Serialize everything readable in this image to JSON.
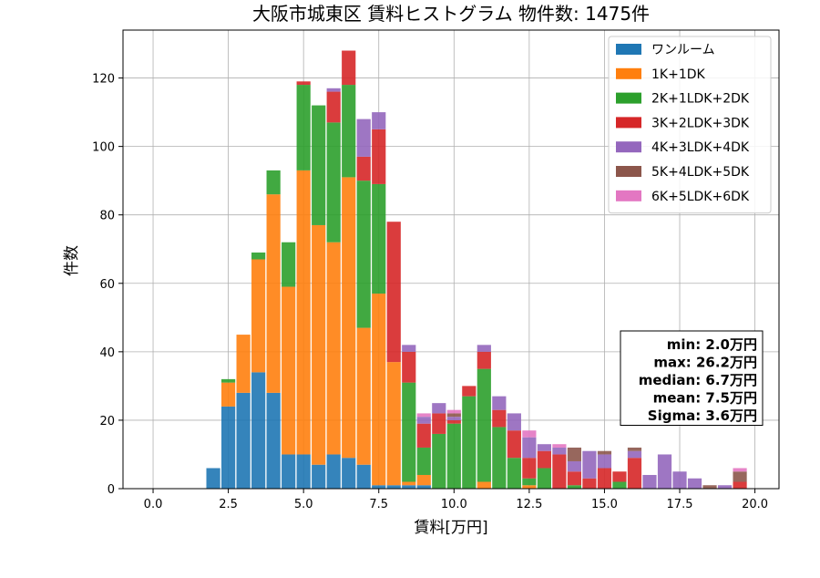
{
  "chart_data": {
    "type": "bar",
    "stacked": true,
    "title": "大阪市城東区 賃料ヒストグラム 物件数: 1475件",
    "xlabel": "賃料[万円]",
    "ylabel": "件数",
    "xlim": [
      -1.0,
      20.8
    ],
    "ylim": [
      0,
      134
    ],
    "grid": true,
    "legend_placement": "top-right",
    "bin_width": 0.5,
    "x_ticks": [
      0.0,
      2.5,
      5.0,
      7.5,
      10.0,
      12.5,
      15.0,
      17.5,
      20.0
    ],
    "x_tick_labels": [
      "0.0",
      "2.5",
      "5.0",
      "7.5",
      "10.0",
      "12.5",
      "15.0",
      "17.5",
      "20.0"
    ],
    "y_ticks": [
      0,
      20,
      40,
      60,
      80,
      100,
      120
    ],
    "y_tick_labels": [
      "0",
      "20",
      "40",
      "60",
      "80",
      "100",
      "120"
    ],
    "x": [
      2.0,
      2.5,
      3.0,
      3.5,
      4.0,
      4.5,
      5.0,
      5.5,
      6.0,
      6.5,
      7.0,
      7.5,
      8.0,
      8.5,
      9.0,
      9.5,
      10.0,
      10.5,
      11.0,
      11.5,
      12.0,
      12.5,
      13.0,
      13.5,
      14.0,
      14.5,
      15.0,
      15.5,
      16.0,
      16.5,
      17.0,
      17.5,
      18.0,
      18.5,
      19.0,
      19.5
    ],
    "series": [
      {
        "name": "ワンルーム",
        "color": "#1f77b4",
        "values": [
          6,
          24,
          28,
          34,
          28,
          10,
          10,
          7,
          10,
          9,
          7,
          1,
          1,
          1,
          1,
          0,
          0,
          0,
          0,
          0,
          0,
          0,
          0,
          0,
          0,
          0,
          0,
          0,
          0,
          0,
          0,
          0,
          0,
          0,
          0,
          0
        ]
      },
      {
        "name": "1K+1DK",
        "color": "#ff7f0e",
        "values": [
          0,
          7,
          17,
          33,
          58,
          49,
          83,
          70,
          62,
          82,
          40,
          56,
          36,
          1,
          3,
          0,
          0,
          0,
          2,
          0,
          0,
          1,
          0,
          0,
          0,
          0,
          0,
          0,
          0,
          0,
          0,
          0,
          0,
          0,
          0,
          0
        ]
      },
      {
        "name": "2K+1LDK+2DK",
        "color": "#2ca02c",
        "values": [
          0,
          1,
          0,
          2,
          7,
          13,
          25,
          35,
          35,
          27,
          43,
          32,
          0,
          29,
          8,
          16,
          19,
          27,
          33,
          18,
          9,
          2,
          6,
          0,
          1,
          0,
          0,
          2,
          0,
          0,
          0,
          0,
          0,
          0,
          0,
          0
        ]
      },
      {
        "name": "3K+2LDK+3DK",
        "color": "#d62728",
        "values": [
          0,
          0,
          0,
          0,
          0,
          0,
          1,
          0,
          9,
          10,
          7,
          16,
          41,
          9,
          7,
          6,
          1,
          3,
          5,
          5,
          8,
          6,
          5,
          10,
          4,
          3,
          6,
          3,
          9,
          0,
          0,
          0,
          0,
          0,
          0,
          2
        ]
      },
      {
        "name": "4K+3LDK+4DK",
        "color": "#9467bd",
        "values": [
          0,
          0,
          0,
          0,
          0,
          0,
          0,
          0,
          1,
          0,
          11,
          5,
          0,
          2,
          2,
          3,
          1,
          0,
          2,
          4,
          5,
          6,
          2,
          2,
          3,
          8,
          4,
          0,
          2,
          4,
          10,
          5,
          3,
          0,
          1,
          0
        ]
      },
      {
        "name": "5K+4LDK+5DK",
        "color": "#8c564b",
        "values": [
          0,
          0,
          0,
          0,
          0,
          0,
          0,
          0,
          0,
          0,
          0,
          0,
          0,
          0,
          0,
          0,
          1,
          0,
          0,
          0,
          0,
          0,
          0,
          0,
          4,
          0,
          1,
          0,
          1,
          0,
          0,
          0,
          0,
          1,
          0,
          3
        ]
      },
      {
        "name": "6K+5LDK+6DK",
        "color": "#e377c2",
        "values": [
          0,
          0,
          0,
          0,
          0,
          0,
          0,
          0,
          0,
          0,
          0,
          0,
          0,
          0,
          1,
          0,
          1,
          0,
          0,
          0,
          0,
          2,
          0,
          1,
          0,
          0,
          0,
          0,
          0,
          0,
          0,
          0,
          0,
          0,
          0,
          1
        ]
      }
    ],
    "stats_box": {
      "lines": [
        "min: 2.0万円",
        "max: 26.2万円",
        "median: 6.7万円",
        "mean: 7.5万円",
        "Sigma: 3.6万円"
      ]
    }
  }
}
